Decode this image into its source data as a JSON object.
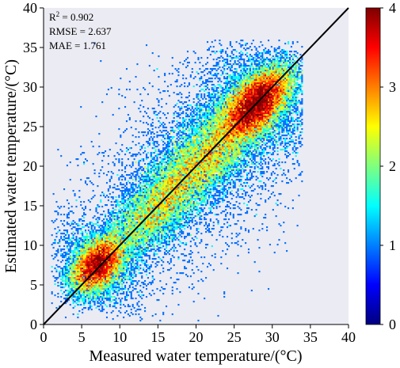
{
  "chart_data": {
    "type": "heatmap",
    "subtype": "density-scatter",
    "title": "",
    "xlabel": "Measured water temperature/(°C)",
    "ylabel": "Estimated water temperature/(°C)",
    "xlim": [
      0,
      40
    ],
    "ylim": [
      0,
      40
    ],
    "xticks": [
      0,
      5,
      10,
      15,
      20,
      25,
      30,
      35,
      40
    ],
    "yticks": [
      0,
      5,
      10,
      15,
      20,
      25,
      30,
      35,
      40
    ],
    "grid": false,
    "background": "#ebebf3",
    "reference_line": {
      "from": [
        0,
        0
      ],
      "to": [
        40,
        40
      ],
      "color": "#000000"
    },
    "annotations": {
      "r2_label": "R",
      "r2_sup": "2",
      "r2_value": " = 0.902",
      "rmse": "RMSE = 2.637",
      "mae": "MAE = 1.761"
    },
    "colorbar": {
      "min": 0,
      "max": 4,
      "ticks": [
        "0",
        "1",
        "2",
        "3",
        "4"
      ],
      "colormap": "jet",
      "colors": [
        "#00007f",
        "#0000ff",
        "#007fff",
        "#00ffff",
        "#7fff7f",
        "#ffff00",
        "#ff7f00",
        "#ff0000",
        "#7f0000"
      ]
    },
    "density_clusters": [
      {
        "cx": 7,
        "cy": 7.5,
        "spread_along": 2.2,
        "spread_across": 1.4,
        "weight": 0.22
      },
      {
        "cx": 15,
        "cy": 15,
        "spread_along": 5,
        "spread_across": 1.9,
        "weight": 0.22
      },
      {
        "cx": 22,
        "cy": 22,
        "spread_along": 4,
        "spread_across": 2.2,
        "weight": 0.18
      },
      {
        "cx": 28,
        "cy": 28,
        "spread_along": 3,
        "spread_across": 1.6,
        "weight": 0.38
      }
    ],
    "x_range_of_points": [
      1,
      34
    ]
  }
}
